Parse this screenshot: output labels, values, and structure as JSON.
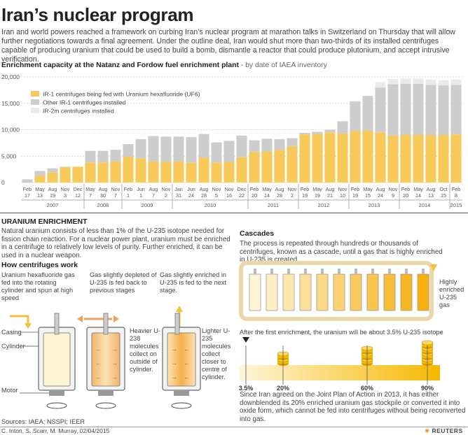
{
  "header": {
    "title": "Iran’s nuclear program",
    "intro": "Iran and world powers reached a framework on curbing Iran’s nuclear program at marathon talks in Switzerland on Thursday that will allow further negotiations towards a final agreement. Under the outline deal, Iran would shut more than two-thirds of its installed centrifuges capable of producing uranium that could be used to build a bomb, dismantle a reactor that could produce plutonium, and accept intrusive verification."
  },
  "chart_heading": {
    "bold": "Enrichment capacity at the Natanz and Fordow fuel enrichment plant",
    "light": " - by date of IAEA inventory"
  },
  "chart_data": {
    "type": "bar",
    "stacked": true,
    "grid": true,
    "ylim": [
      0,
      20000
    ],
    "yticks": [
      0,
      5000,
      10000,
      15000,
      20000
    ],
    "ytick_labels": [
      "0",
      "5,000",
      "10,000",
      "15,000",
      "20,000"
    ],
    "legend_position": "top-left",
    "categories": [
      "Feb 17",
      "May 13",
      "Aug 19",
      "Nov 3",
      "Dec 12",
      "May 7",
      "Aug 30",
      "Nov 7",
      "Feb 1",
      "Jun 1",
      "Aug 7",
      "Nov 2",
      "Jan 31",
      "Jun 24",
      "Aug 28",
      "Nov 5",
      "Nov 16",
      "Dec 22",
      "Feb 20",
      "May 14",
      "Aug 28",
      "Nov 2",
      "Feb 19",
      "May 19",
      "Aug 21",
      "Nov 10",
      "Feb 19",
      "May 15",
      "Aug 24",
      "Nov 9",
      "Feb 20",
      "May 14",
      "Aug 13",
      "Oct 15",
      "Feb 8"
    ],
    "month_labels": [
      "Feb",
      "May",
      "Aug",
      "Nov",
      "Dec",
      "May",
      "Aug",
      "Nov",
      "Feb",
      "Jun",
      "Aug",
      "Nov",
      "Jan",
      "Jun",
      "Aug",
      "Nov",
      "Nov",
      "Dec",
      "Feb",
      "May",
      "Aug",
      "Nov",
      "Feb",
      "May",
      "Aug",
      "Nov",
      "Feb",
      "May",
      "Aug",
      "Nov",
      "Feb",
      "May",
      "Aug",
      "Oct",
      "Feb"
    ],
    "day_labels": [
      "17",
      "13",
      "19",
      "3",
      "12",
      "7",
      "30",
      "7",
      "1",
      "1",
      "7",
      "2",
      "31",
      "24",
      "28",
      "5",
      "16",
      "22",
      "20",
      "14",
      "28",
      "2",
      "19",
      "19",
      "21",
      "10",
      "19",
      "15",
      "24",
      "9",
      "20",
      "14",
      "13",
      "15",
      "8"
    ],
    "years": [
      {
        "label": "2007",
        "start": 0,
        "end": 4
      },
      {
        "label": "2008",
        "start": 5,
        "end": 7
      },
      {
        "label": "2009",
        "start": 8,
        "end": 11
      },
      {
        "label": "2010",
        "start": 12,
        "end": 17
      },
      {
        "label": "2011",
        "start": 18,
        "end": 21
      },
      {
        "label": "2012",
        "start": 22,
        "end": 25
      },
      {
        "label": "2013",
        "start": 26,
        "end": 29
      },
      {
        "label": "2014",
        "start": 30,
        "end": 33
      },
      {
        "label": "2015",
        "start": 34,
        "end": 34
      }
    ],
    "series": [
      {
        "name": "IR-1 centrifuges being fed with Uranium hexafluoride (UF6)",
        "color": "#f7c85a",
        "values": [
          0,
          1300,
          1900,
          2900,
          3000,
          3800,
          3800,
          4000,
          4900,
          4600,
          4000,
          3900,
          4000,
          3800,
          4700,
          3800,
          3900,
          4800,
          5800,
          5900,
          6200,
          6900,
          9100,
          9200,
          9500,
          9300,
          9800,
          9800,
          9500,
          8900,
          9000,
          9000,
          9000,
          9000,
          9100
        ]
      },
      {
        "name": "Other IR-1 centrifuges installed",
        "color": "#cdcdcd",
        "values": [
          600,
          900,
          800,
          100,
          0,
          2200,
          2200,
          2200,
          2400,
          3600,
          4800,
          4800,
          4700,
          4800,
          4500,
          3800,
          4000,
          4100,
          2200,
          2400,
          2000,
          1500,
          300,
          400,
          500,
          2300,
          5600,
          6600,
          8500,
          9700,
          9700,
          9700,
          9500,
          9400,
          9400
        ]
      },
      {
        "name": "IR-2m centrifuges installed",
        "color": "#eaeaea",
        "values": [
          0,
          0,
          0,
          0,
          0,
          0,
          0,
          0,
          0,
          0,
          0,
          0,
          0,
          0,
          0,
          0,
          0,
          0,
          0,
          0,
          0,
          0,
          0,
          0,
          0,
          0,
          0,
          0,
          1000,
          1000,
          1000,
          1000,
          1000,
          1000,
          1000
        ]
      }
    ]
  },
  "enrichment": {
    "heading": "URANIUM ENRICHMENT",
    "text": "Natural uranium consists of less than 1% of the U-235 isotope needed for fission chain reaction. For a nuclear power plant, uranium must be enriched in a centrifuge to relatively low levels of purity. Further enriched, it can be used in a nuclear weapon."
  },
  "centrifuges": {
    "heading": "How centrifuges work",
    "step1": "Uranium hexafluoride gas fed into the rotating cylinder and spun at high speed",
    "step2": "Gas slightly depleted of U-235 is fed back to previous stages",
    "step3": "Gas slightly enriched in U-235 is fed to the next stage.",
    "casing": "Casing",
    "cylinder": "Cylinder",
    "motor": "Motor",
    "heavier": "Heavier U-238 molecules collect on outside of cylinder.",
    "lighter": "Lighter U-235 molecules collect closer to centre of cylinder."
  },
  "cascades": {
    "heading": "Cascades",
    "text": "The process is repeated through hundreds or thousands of centrifuges, known as a cascade, until a gas that is highly enriched in U-235 is created.",
    "highly_enriched": "Highly enriched U-235 gas",
    "first_enrichment": "After the first enrichment, the uranium will be about 3.5% U-235 isotope",
    "levels": [
      "3.5%",
      "20%",
      "60%",
      "90%"
    ],
    "jpoa": "Since Iran agreed on the Joint Plan of Action in 2013, it has either downblended its 20% enriched uranium gas stockpile or converted it into oxide form, which cannot be fed into centrifuges without being reconverted into gas."
  },
  "footer": {
    "sources": "Sources: IAEA; NSSPI; IEER",
    "credit": "C. Inton, S. Scarr, M. Murray, 02/04/2015",
    "brand": "REUTERS"
  }
}
